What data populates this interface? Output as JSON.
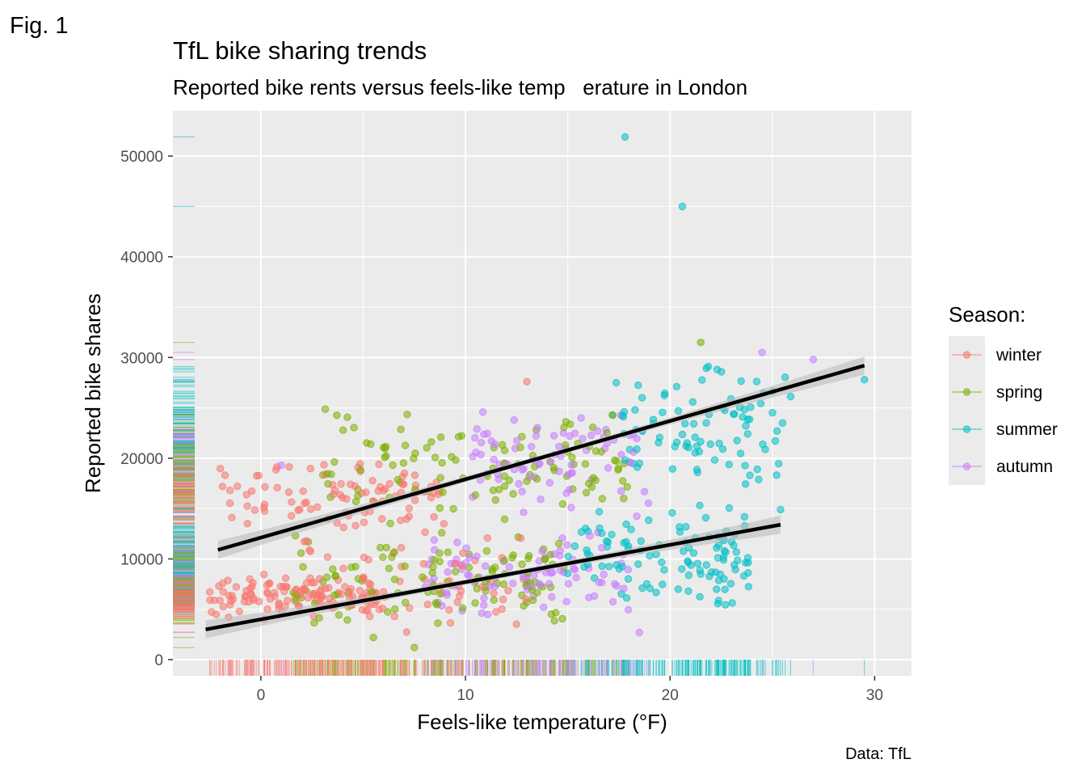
{
  "figure_label": "Fig. 1",
  "caption": "Data: TfL",
  "colors": {
    "panel_bg": "#EBEBEB",
    "grid": "#FFFFFF",
    "trend": "#000000",
    "ribbon": "#BDBDBD",
    "season": {
      "winter": "#F8766D",
      "spring": "#7CAE00",
      "summer": "#00BFC4",
      "autumn": "#C77CFF"
    }
  },
  "chart_data": {
    "type": "scatter",
    "title": "TfL bike sharing trends",
    "subtitle": "Reported bike rents versus feels-like temp   erature in London",
    "xlabel": "Feels-like temperature (°F)",
    "ylabel": "Reported bike shares",
    "xlim": [
      -4.3,
      31.8
    ],
    "ylim": [
      -1600,
      54500
    ],
    "x_ticks": [
      0,
      10,
      20,
      30
    ],
    "y_ticks": [
      0,
      10000,
      20000,
      30000,
      40000,
      50000
    ],
    "y_tick_labels": [
      "0",
      "10000",
      "20000",
      "30000",
      "40000",
      "50000"
    ],
    "grid": true,
    "rug": "bottom and left",
    "legend": {
      "title": "Season:",
      "position": "right",
      "entries": [
        "winter",
        "spring",
        "summer",
        "autumn"
      ]
    },
    "trend_lines": [
      {
        "name": "upper",
        "x": [
          -2.1,
          29.5
        ],
        "y": [
          10900,
          29200
        ]
      },
      {
        "name": "lower",
        "x": [
          -2.7,
          25.4
        ],
        "y": [
          3000,
          13400
        ]
      }
    ],
    "series": [
      {
        "name": "winter",
        "x_range": [
          -2.8,
          13
        ],
        "clusters": [
          {
            "n": 120,
            "x": [
              -2.5,
              6
            ],
            "y": [
              4000,
              8500
            ]
          },
          {
            "n": 90,
            "x": [
              -2,
              9
            ],
            "y": [
              13000,
              20000
            ]
          },
          {
            "n": 60,
            "x": [
              2,
              13
            ],
            "y": [
              2000,
              14000
            ]
          }
        ],
        "points": [
          [
            13,
            27600
          ]
        ]
      },
      {
        "name": "spring",
        "x_range": [
          1,
          22
        ],
        "clusters": [
          {
            "n": 110,
            "x": [
              1.5,
              15
            ],
            "y": [
              3000,
              13000
            ]
          },
          {
            "n": 110,
            "x": [
              3,
              18
            ],
            "y": [
              13000,
              26000
            ]
          }
        ],
        "points": [
          [
            21.5,
            31500
          ],
          [
            7.5,
            1200
          ],
          [
            5.5,
            2200
          ]
        ]
      },
      {
        "name": "summer",
        "x_range": [
          14,
          29.5
        ],
        "clusters": [
          {
            "n": 110,
            "x": [
              15,
              24
            ],
            "y": [
              4500,
              15500
            ]
          },
          {
            "n": 90,
            "x": [
              17,
              26
            ],
            "y": [
              17000,
              30000
            ]
          }
        ],
        "points": [
          [
            17.8,
            51900
          ],
          [
            20.6,
            45000
          ],
          [
            29.5,
            27800
          ],
          [
            25.4,
            14900
          ],
          [
            21.5,
            8500
          ]
        ]
      },
      {
        "name": "autumn",
        "x_range": [
          1,
          27
        ],
        "clusters": [
          {
            "n": 90,
            "x": [
              8,
              18
            ],
            "y": [
              3500,
              13000
            ]
          },
          {
            "n": 80,
            "x": [
              10,
              19
            ],
            "y": [
              14000,
              26000
            ]
          }
        ],
        "points": [
          [
            24.5,
            30500
          ],
          [
            27,
            29800
          ],
          [
            18.5,
            2700
          ],
          [
            1,
            19300
          ]
        ]
      }
    ]
  }
}
